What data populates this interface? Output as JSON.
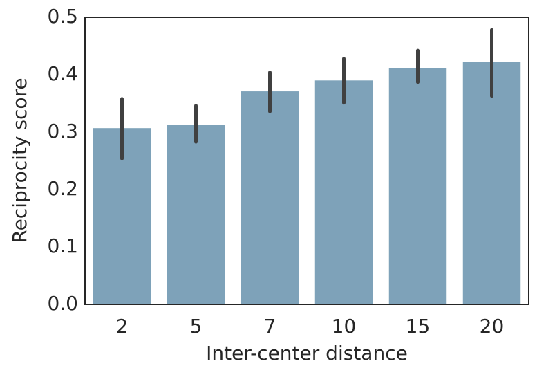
{
  "chart_data": {
    "type": "bar",
    "x_label": "Inter-center distance",
    "y_label": "Reciprocity score",
    "categories": [
      "2",
      "5",
      "7",
      "10",
      "15",
      "20"
    ],
    "values": [
      0.307,
      0.313,
      0.371,
      0.39,
      0.412,
      0.422
    ],
    "ci_low": [
      0.254,
      0.283,
      0.336,
      0.351,
      0.387,
      0.363
    ],
    "ci_high": [
      0.358,
      0.346,
      0.404,
      0.428,
      0.442,
      0.478
    ],
    "color": "#7ea2b9",
    "error_color": "#404040",
    "ylim": [
      0,
      0.5
    ],
    "yticks": [
      {
        "value": 0,
        "label": "0.0"
      },
      0.1,
      0.2,
      0.3,
      0.4,
      0.5
    ],
    "grid": false
  }
}
